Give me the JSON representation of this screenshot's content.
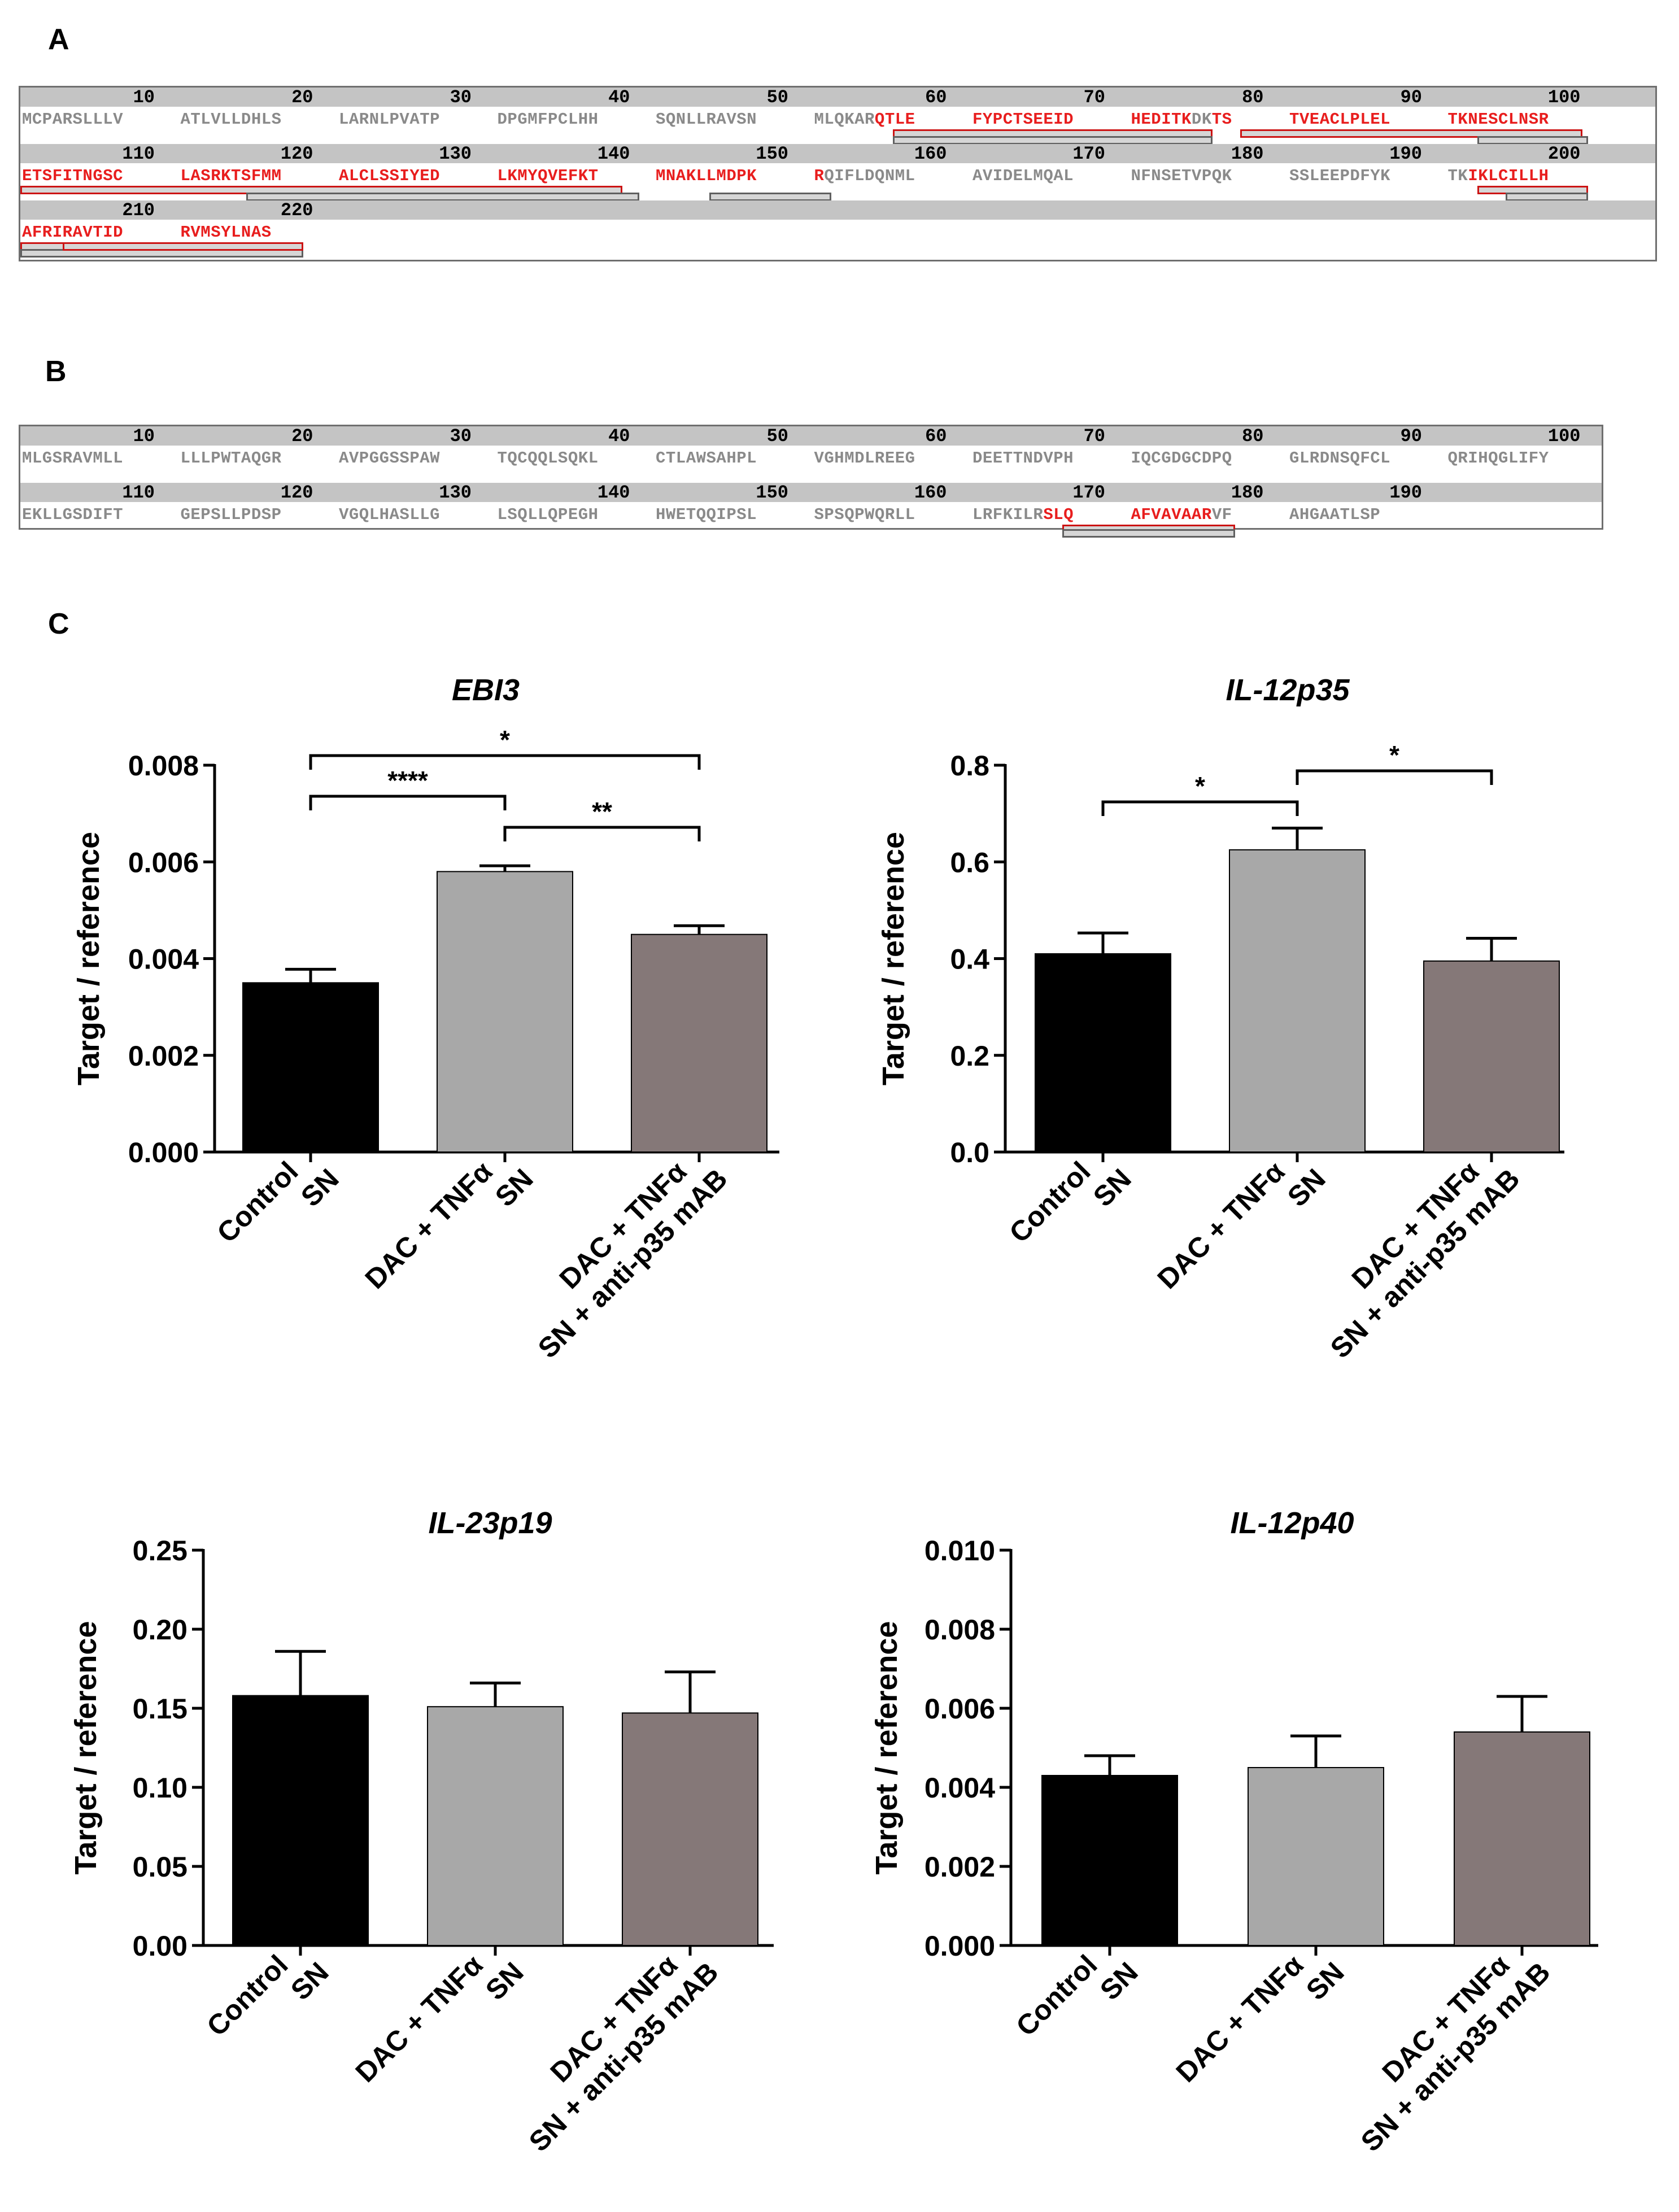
{
  "panels": {
    "a": "A",
    "b": "B",
    "c": "C"
  },
  "sequence_a": {
    "rows": [
      {
        "numbers": [
          "10",
          "20",
          "30",
          "40",
          "50",
          "60",
          "70",
          "80",
          "90",
          "100"
        ],
        "blocks": [
          {
            "segments": [
              {
                "t": "MCPARSLLLV",
                "hl": false
              }
            ]
          },
          {
            "segments": [
              {
                "t": "ATLVLLDHLS",
                "hl": false
              }
            ]
          },
          {
            "segments": [
              {
                "t": "LARNLPVATP",
                "hl": false
              }
            ]
          },
          {
            "segments": [
              {
                "t": "DPGMFPCLHH",
                "hl": false
              }
            ]
          },
          {
            "segments": [
              {
                "t": "SQNLLRAVSN",
                "hl": false
              }
            ]
          },
          {
            "segments": [
              {
                "t": "MLQKAR",
                "hl": false
              },
              {
                "t": "QTLE",
                "hl": true
              }
            ]
          },
          {
            "segments": [
              {
                "t": "FYPCTSEEID",
                "hl": true
              }
            ]
          },
          {
            "segments": [
              {
                "t": "HEDITK",
                "hl": true
              },
              {
                "t": "DK",
                "hl": false
              },
              {
                "t": "TS",
                "hl": true
              }
            ]
          },
          {
            "segments": [
              {
                "t": "TVEACLPLEL",
                "hl": true
              }
            ]
          },
          {
            "segments": [
              {
                "t": "TKNESCLNSR",
                "hl": true
              }
            ]
          }
        ]
      },
      {
        "numbers": [
          "110",
          "120",
          "130",
          "140",
          "150",
          "160",
          "170",
          "180",
          "190",
          "200"
        ],
        "blocks": [
          {
            "segments": [
              {
                "t": "ETSFITNGSC",
                "hl": true
              }
            ]
          },
          {
            "segments": [
              {
                "t": "LASRKTSFMM",
                "hl": true
              }
            ]
          },
          {
            "segments": [
              {
                "t": "ALCLSSIYED",
                "hl": true
              }
            ]
          },
          {
            "segments": [
              {
                "t": "LKMYQVEFKT",
                "hl": true
              }
            ]
          },
          {
            "segments": [
              {
                "t": "MNAKLLMDPK",
                "hl": true
              }
            ]
          },
          {
            "segments": [
              {
                "t": "R",
                "hl": true
              },
              {
                "t": "QIFLDQNML",
                "hl": false
              }
            ]
          },
          {
            "segments": [
              {
                "t": "AVIDELMQAL",
                "hl": false
              }
            ]
          },
          {
            "segments": [
              {
                "t": "NFNSETVPQK",
                "hl": false
              }
            ]
          },
          {
            "segments": [
              {
                "t": "SSLEEPDFYK",
                "hl": false
              }
            ]
          },
          {
            "segments": [
              {
                "t": "TK",
                "hl": false
              },
              {
                "t": "IKLCILLH",
                "hl": true
              }
            ]
          }
        ]
      },
      {
        "numbers": [
          "210",
          "220"
        ],
        "blocks": [
          {
            "segments": [
              {
                "t": "AFRIRAVTID",
                "hl": true
              }
            ]
          },
          {
            "segments": [
              {
                "t": "RVMSYLNAS",
                "hl": true
              }
            ]
          }
        ]
      }
    ]
  },
  "sequence_b": {
    "rows": [
      {
        "numbers": [
          "10",
          "20",
          "30",
          "40",
          "50",
          "60",
          "70",
          "80",
          "90",
          "100"
        ],
        "blocks": [
          {
            "segments": [
              {
                "t": "MLGSRAVMLL",
                "hl": false
              }
            ]
          },
          {
            "segments": [
              {
                "t": "LLLPWTAQGR",
                "hl": false
              }
            ]
          },
          {
            "segments": [
              {
                "t": "AVPGGSSPAW",
                "hl": false
              }
            ]
          },
          {
            "segments": [
              {
                "t": "TQCQQLSQKL",
                "hl": false
              }
            ]
          },
          {
            "segments": [
              {
                "t": "CTLAWSAHPL",
                "hl": false
              }
            ]
          },
          {
            "segments": [
              {
                "t": "VGHMDLREEG",
                "hl": false
              }
            ]
          },
          {
            "segments": [
              {
                "t": "DEETTNDVPH",
                "hl": false
              }
            ]
          },
          {
            "segments": [
              {
                "t": "IQCGDGCDPQ",
                "hl": false
              }
            ]
          },
          {
            "segments": [
              {
                "t": "GLRDNSQFCL",
                "hl": false
              }
            ]
          },
          {
            "segments": [
              {
                "t": "QRIHQGLIFY",
                "hl": false
              }
            ]
          }
        ]
      },
      {
        "numbers": [
          "110",
          "120",
          "130",
          "140",
          "150",
          "160",
          "170",
          "180",
          "190"
        ],
        "blocks": [
          {
            "segments": [
              {
                "t": "EKLLGSDIFT",
                "hl": false
              }
            ]
          },
          {
            "segments": [
              {
                "t": "GEPSLLPDSP",
                "hl": false
              }
            ]
          },
          {
            "segments": [
              {
                "t": "VGQLHASLLG",
                "hl": false
              }
            ]
          },
          {
            "segments": [
              {
                "t": "LSQLLQPEGH",
                "hl": false
              }
            ]
          },
          {
            "segments": [
              {
                "t": "HWETQQIPSL",
                "hl": false
              }
            ]
          },
          {
            "segments": [
              {
                "t": "SPSQPWQRLL",
                "hl": false
              }
            ]
          },
          {
            "segments": [
              {
                "t": "LRFKILR",
                "hl": false
              },
              {
                "t": "SLQ",
                "hl": true
              }
            ]
          },
          {
            "segments": [
              {
                "t": "AFVAVAAR",
                "hl": true
              },
              {
                "t": "VF",
                "hl": false
              }
            ]
          },
          {
            "segments": [
              {
                "t": "AHGAATLSP",
                "hl": false
              }
            ]
          }
        ]
      }
    ]
  },
  "colors": {
    "highlight": "#e81e1e",
    "plain": "#8a8a8a",
    "control": "#000000",
    "dac": "#a8a8a8",
    "dac_anti": "#857878"
  },
  "categories": [
    "Control\nSN",
    "DAC + TNFα\nSN",
    "DAC + TNFα\nSN + anti-p35 mAB"
  ],
  "ylabel": "Target / reference",
  "chart_data": [
    {
      "type": "bar",
      "title": "EBI3",
      "ylabel": "Target / reference",
      "ylim": [
        0,
        0.008
      ],
      "yticks": [
        "0.000",
        "0.002",
        "0.004",
        "0.006",
        "0.008"
      ],
      "categories": [
        "Control SN",
        "DAC + TNFα SN",
        "DAC + TNFα SN + anti-p35 mAB"
      ],
      "values": [
        0.0035,
        0.0058,
        0.0045
      ],
      "errors": [
        0.00028,
        0.00012,
        0.00018
      ],
      "significance": [
        {
          "from": 0,
          "to": 1,
          "label": "****"
        },
        {
          "from": 1,
          "to": 2,
          "label": "**"
        },
        {
          "from": 0,
          "to": 2,
          "label": "*"
        }
      ]
    },
    {
      "type": "bar",
      "title": "IL-12p35",
      "ylabel": "Target / reference",
      "ylim": [
        0,
        0.8
      ],
      "yticks": [
        "0.0",
        "0.2",
        "0.4",
        "0.6",
        "0.8"
      ],
      "categories": [
        "Control SN",
        "DAC + TNFα SN",
        "DAC + TNFα SN + anti-p35 mAB"
      ],
      "values": [
        0.41,
        0.625,
        0.395
      ],
      "errors": [
        0.043,
        0.045,
        0.047
      ],
      "significance": [
        {
          "from": 0,
          "to": 1,
          "label": "*"
        },
        {
          "from": 1,
          "to": 2,
          "label": "*"
        }
      ]
    },
    {
      "type": "bar",
      "title": "IL-23p19",
      "ylabel": "Target / reference",
      "ylim": [
        0,
        0.25
      ],
      "yticks": [
        "0.00",
        "0.05",
        "0.10",
        "0.15",
        "0.20",
        "0.25"
      ],
      "categories": [
        "Control SN",
        "DAC + TNFα SN",
        "DAC + TNFα SN + anti-p35 mAB"
      ],
      "values": [
        0.158,
        0.151,
        0.147
      ],
      "errors": [
        0.028,
        0.015,
        0.026
      ],
      "significance": []
    },
    {
      "type": "bar",
      "title": "IL-12p40",
      "ylabel": "Target / reference",
      "ylim": [
        0,
        0.01
      ],
      "yticks": [
        "0.000",
        "0.002",
        "0.004",
        "0.006",
        "0.008",
        "0.010"
      ],
      "categories": [
        "Control SN",
        "DAC + TNFα SN",
        "DAC + TNFα SN + anti-p35 mAB"
      ],
      "values": [
        0.0043,
        0.0045,
        0.0054
      ],
      "errors": [
        0.0005,
        0.0008,
        0.0009
      ],
      "significance": []
    }
  ]
}
